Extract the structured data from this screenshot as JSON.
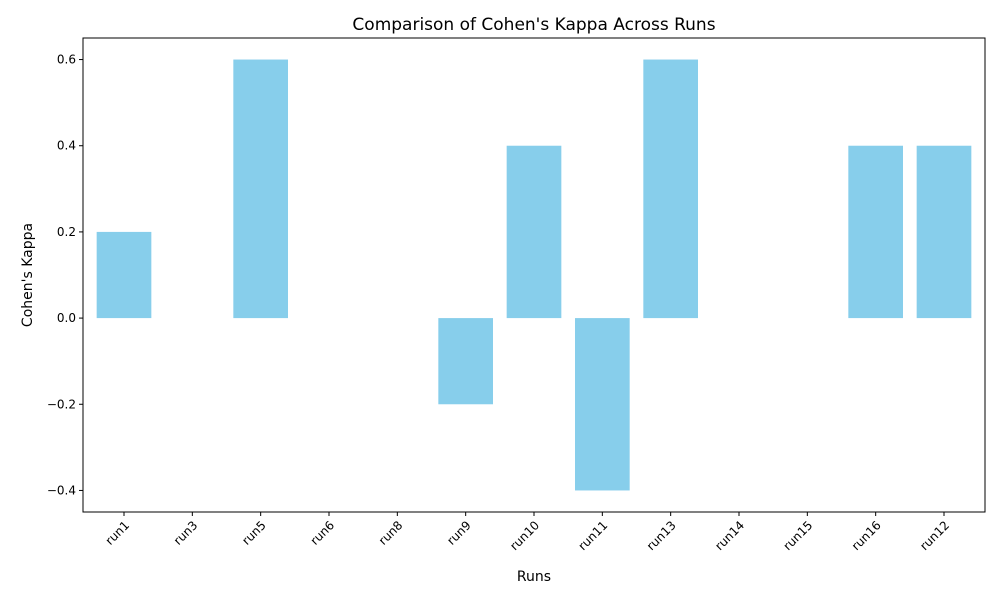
{
  "chart_data": {
    "type": "bar",
    "title": "Comparison of Cohen's Kappa Across Runs",
    "xlabel": "Runs",
    "ylabel": "Cohen's Kappa",
    "categories": [
      "run1",
      "run3",
      "run5",
      "run6",
      "run8",
      "run9",
      "run10",
      "run11",
      "run13",
      "run14",
      "run15",
      "run16",
      "run12"
    ],
    "values": [
      0.2,
      0.0,
      0.6,
      0.0,
      0.0,
      -0.2,
      0.4,
      -0.4,
      0.6,
      0.0,
      0.0,
      0.4,
      0.4
    ],
    "ylim": [
      -0.45,
      0.65
    ],
    "yticks": [
      -0.4,
      -0.2,
      0.0,
      0.2,
      0.4,
      0.6
    ],
    "ytick_labels": [
      "−0.4",
      "−0.2",
      "0.0",
      "0.2",
      "0.4",
      "0.6"
    ],
    "bar_color": "#87ceeb",
    "grid": false,
    "legend": false
  }
}
